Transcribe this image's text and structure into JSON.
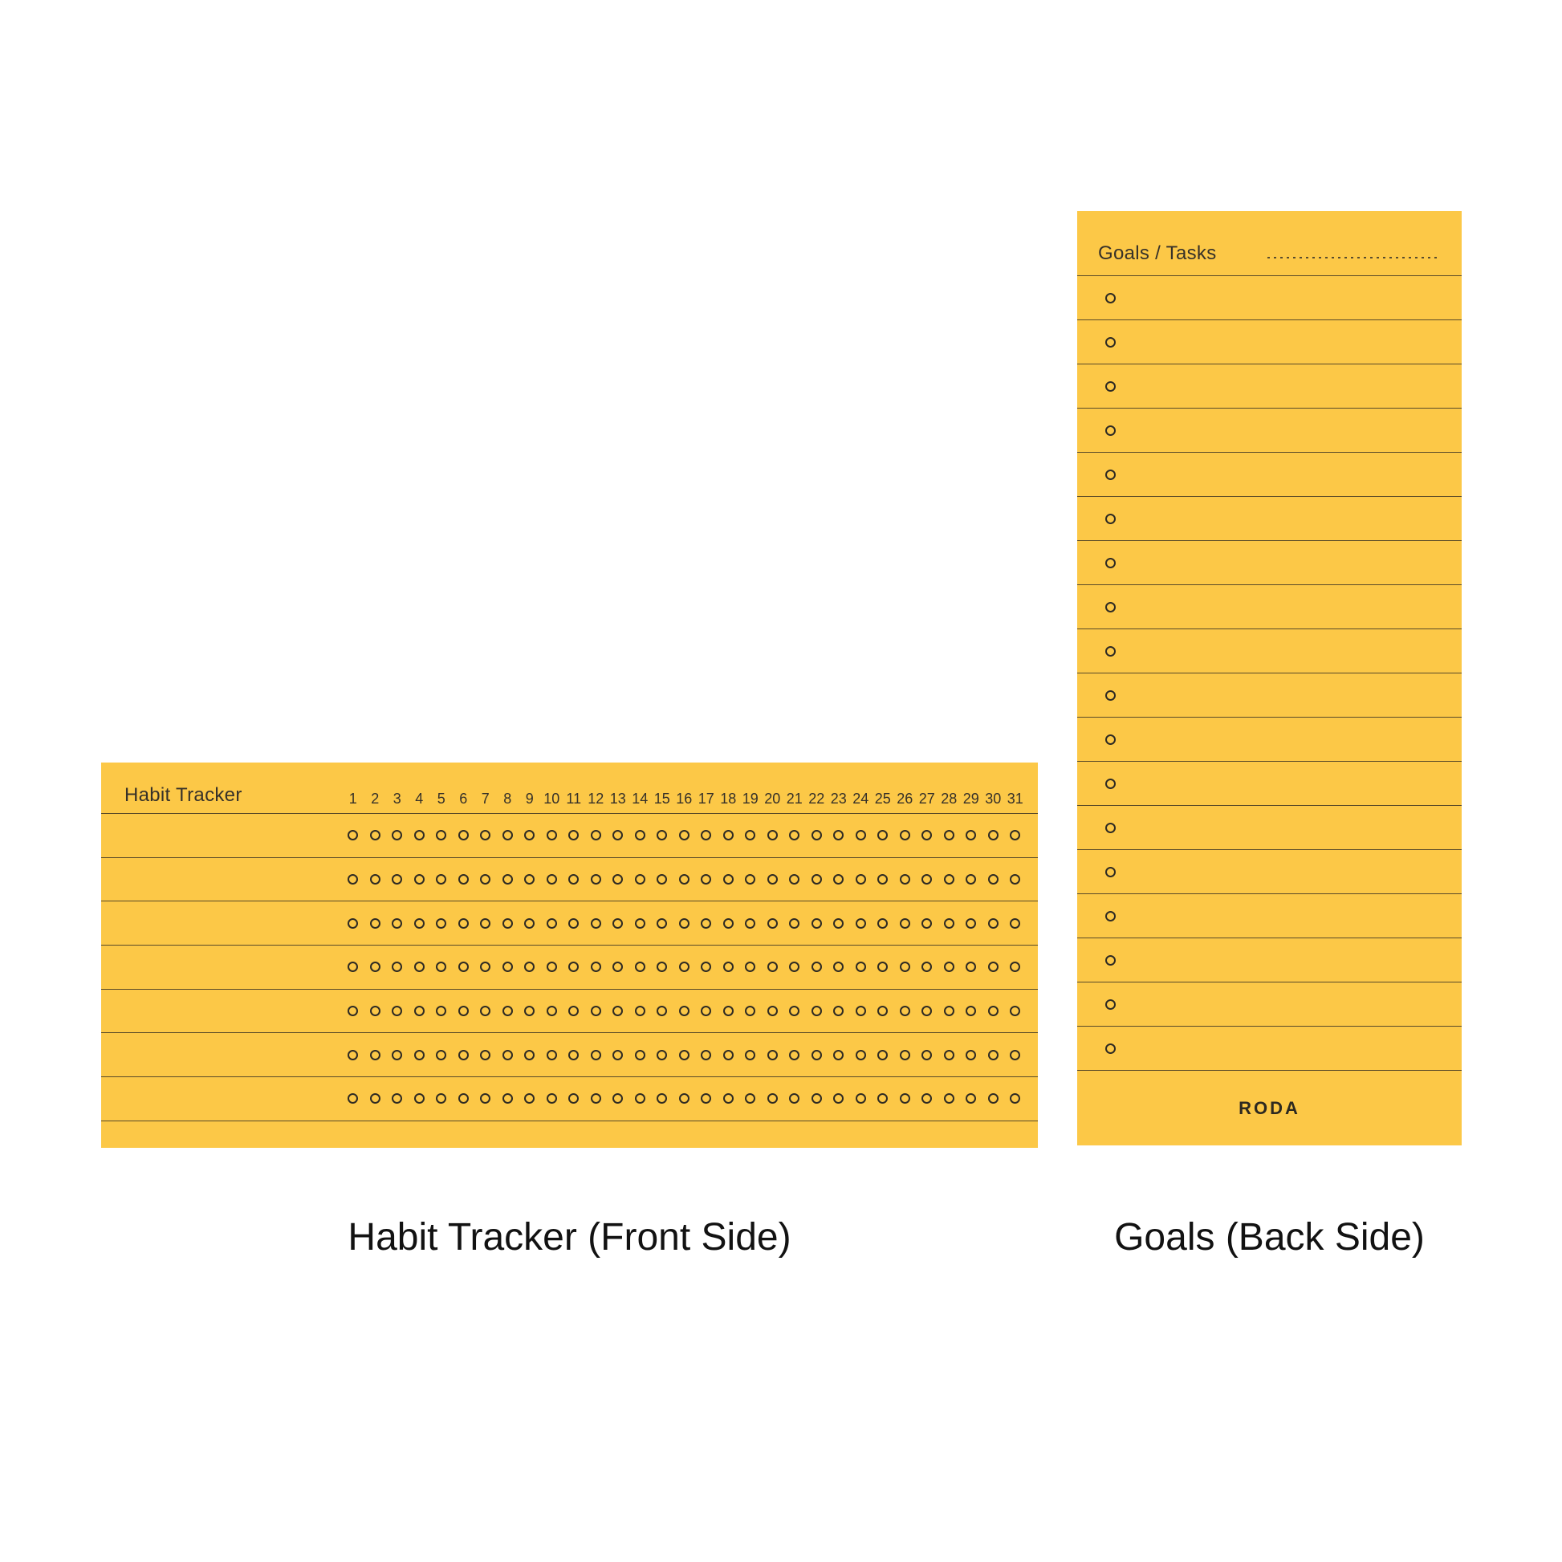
{
  "colors": {
    "card_bg": "#FCC847",
    "ink": "#363129",
    "circle_ink": "#2F2B23",
    "brand_ink": "#2D2920",
    "caption_ink": "#121212"
  },
  "habit_card": {
    "title": "Habit Tracker",
    "days": [
      "1",
      "2",
      "3",
      "4",
      "5",
      "6",
      "7",
      "8",
      "9",
      "10",
      "11",
      "12",
      "13",
      "14",
      "15",
      "16",
      "17",
      "18",
      "19",
      "20",
      "21",
      "22",
      "23",
      "24",
      "25",
      "26",
      "27",
      "28",
      "29",
      "30",
      "31"
    ],
    "row_count": 7,
    "caption": "Habit Tracker (Front Side)"
  },
  "goals_card": {
    "title": "Goals / Tasks",
    "row_count": 18,
    "brand": "RODA",
    "caption": "Goals (Back Side)"
  }
}
